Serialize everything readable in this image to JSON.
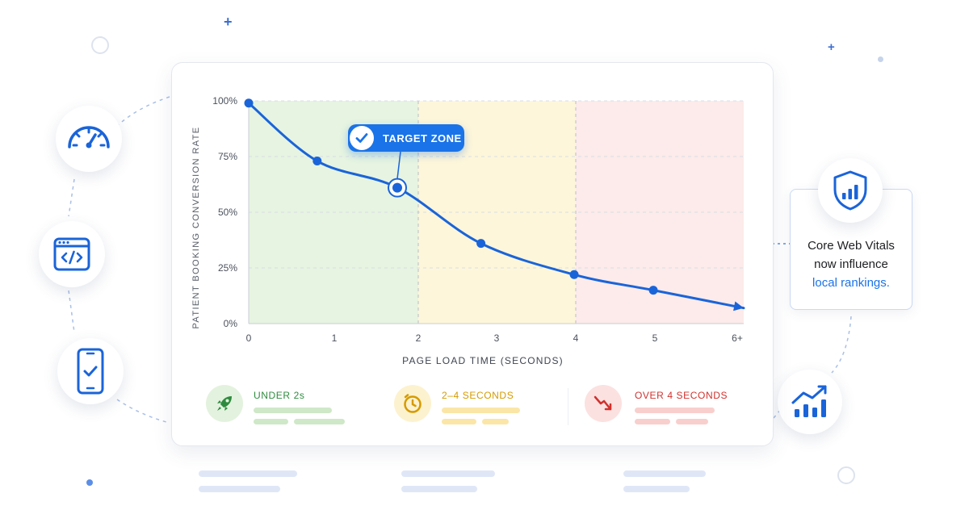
{
  "chart_data": {
    "type": "line",
    "xlabel": "PAGE LOAD TIME (SECONDS)",
    "ylabel": "PATIENT BOOKING CONVERSION RATE",
    "x_tick_labels": [
      "0",
      "1",
      "2",
      "3",
      "4",
      "5",
      "6+"
    ],
    "y_tick_labels": [
      "100%",
      "75%",
      "50%",
      "25%",
      "0%"
    ],
    "ylim": [
      0,
      100
    ],
    "xlim": [
      0,
      6
    ],
    "grid": true,
    "series": [
      {
        "x": [
          0,
          0.8,
          1.75,
          2.8,
          3.98,
          4.98,
          6
        ],
        "values": [
          99,
          73,
          61,
          36,
          22,
          15,
          7
        ]
      }
    ],
    "highlight_point": {
      "x": 1.75,
      "y": 61
    },
    "zones": [
      {
        "from": 0,
        "to": 2,
        "color": "#e6f4e1"
      },
      {
        "from": 2,
        "to": 4,
        "color": "#fdf6da"
      },
      {
        "from": 4,
        "to": 6,
        "color": "#fcebea"
      }
    ],
    "annotation": "TARGET ZONE"
  },
  "legend": [
    {
      "label": "UNDER 2s",
      "icon": "rocket-icon",
      "color": "#2e8b3e",
      "icon_bg": "#e3f2de",
      "bar_color": "#cfe8c8"
    },
    {
      "label": "2–4 SECONDS",
      "icon": "clock-icon",
      "color": "#d59a00",
      "icon_bg": "#fdf2cf",
      "bar_color": "#fbe6a8"
    },
    {
      "label": "OVER 4 SECONDS",
      "icon": "trend-down-icon",
      "color": "#d0312d",
      "icon_bg": "#fbe1e0",
      "bar_color": "#f8cfcd"
    }
  ],
  "info": {
    "line1": "Core Web Vitals",
    "line2": "now influence",
    "highlight": "local rankings."
  },
  "colors": {
    "accent": "#1a73e8",
    "line": "#1a64d9"
  },
  "icons": [
    "speedometer-icon",
    "code-window-icon",
    "smartphone-check-icon",
    "shield-chart-icon",
    "growth-chart-icon",
    "check-icon"
  ]
}
